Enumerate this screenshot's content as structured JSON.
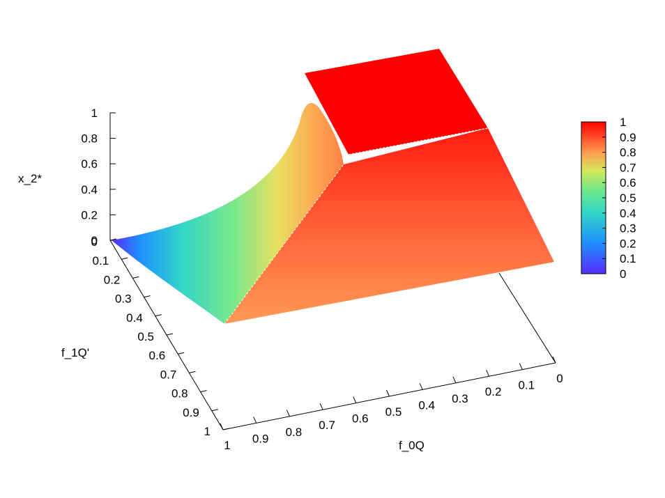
{
  "chart_data": {
    "type": "surface3d",
    "title": "",
    "xlabel": "f_0Q",
    "ylabel": "f_1Q'",
    "zlabel": "x_2*",
    "x_ticks": [
      "1",
      "0.9",
      "0.8",
      "0.7",
      "0.6",
      "0.5",
      "0.4",
      "0.3",
      "0.2",
      "0.1",
      "0"
    ],
    "y_ticks": [
      "0",
      "0.1",
      "0.2",
      "0.3",
      "0.4",
      "0.5",
      "0.6",
      "0.7",
      "0.8",
      "0.9",
      "1"
    ],
    "z_ticks": [
      "0",
      "0.2",
      "0.4",
      "0.6",
      "0.8",
      "1"
    ],
    "zlim": [
      0,
      1
    ],
    "colorbar": {
      "range": [
        0,
        1
      ],
      "ticks": [
        "0",
        "0.1",
        "0.2",
        "0.3",
        "0.4",
        "0.5",
        "0.6",
        "0.7",
        "0.8",
        "0.9",
        "1"
      ],
      "palette": [
        "#5a2bff",
        "#1e90ff",
        "#33d6c8",
        "#6ee88a",
        "#d6e85a",
        "#ff9a50",
        "#ff0000"
      ]
    },
    "surface": {
      "flat_region_value": 1.0,
      "corner_values": {
        "f0Q_0_f1Q_0": 0.72,
        "f0Q_0_f1Q_1": 0.72,
        "f0Q_1_f1Q_1": 0.72,
        "f0Q_1_f1Q_0": 0.0
      },
      "peak_value": 1.0
    }
  }
}
